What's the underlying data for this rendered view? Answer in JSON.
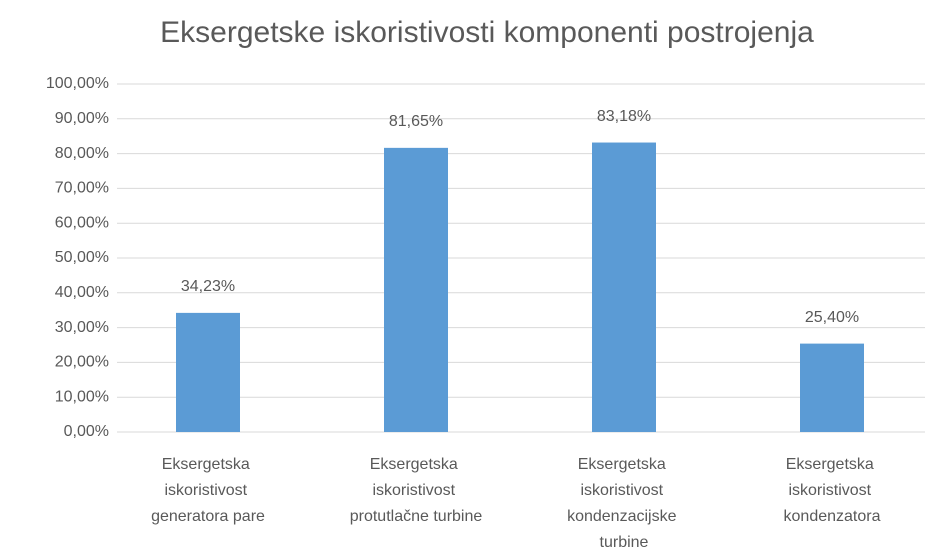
{
  "chart_data": {
    "type": "bar",
    "title": "Eksergetske iskoristivosti komponenti postrojenja",
    "categories": [
      "Eksergetska iskoristivost generatora pare",
      "Eksergetska iskoristivost protutlačne turbine",
      "Eksergetska iskoristivost kondenzacijske turbine",
      "Eksergetska iskoristivost kondenzatora"
    ],
    "values": [
      34.23,
      81.65,
      83.18,
      25.4
    ],
    "value_labels": [
      "34,23%",
      "81,65%",
      "83,18%",
      "25,40%"
    ],
    "color": "#5b9bd5",
    "ylim": [
      0,
      100
    ],
    "yticks": [
      {
        "value": 0,
        "label": "0,00%"
      },
      {
        "value": 10,
        "label": "10,00%"
      },
      {
        "value": 20,
        "label": "20,00%"
      },
      {
        "value": 30,
        "label": "30,00%"
      },
      {
        "value": 40,
        "label": "40,00%"
      },
      {
        "value": 50,
        "label": "50,00%"
      },
      {
        "value": 60,
        "label": "60,00%"
      },
      {
        "value": 70,
        "label": "70,00%"
      },
      {
        "value": 80,
        "label": "80,00%"
      },
      {
        "value": 90,
        "label": "90,00%"
      },
      {
        "value": 100,
        "label": "100,00%"
      }
    ],
    "grid": true
  }
}
